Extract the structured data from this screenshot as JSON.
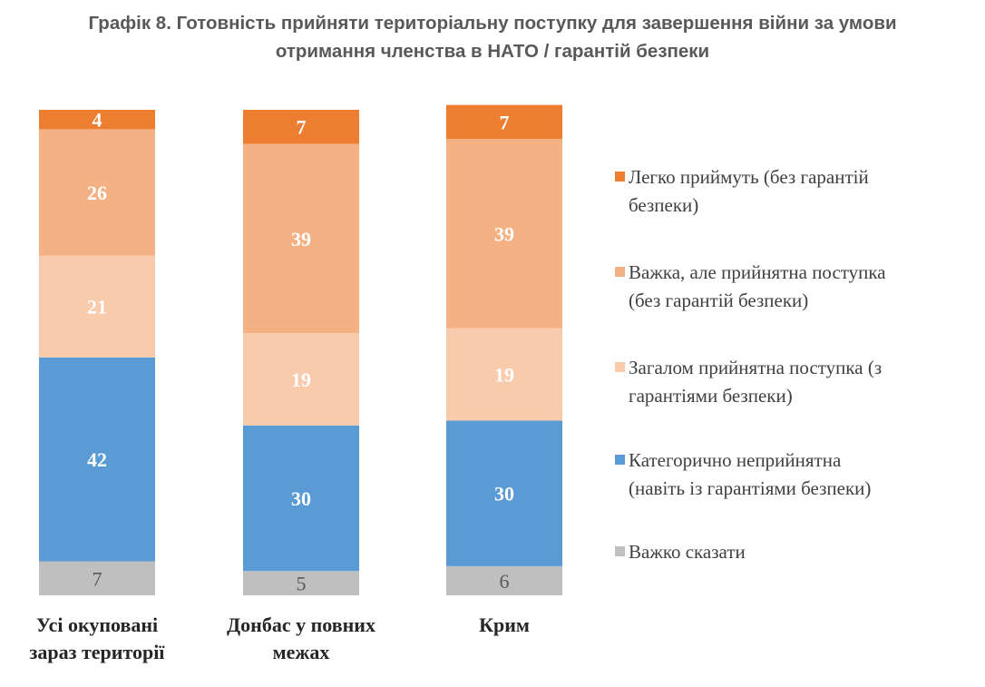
{
  "title_line1": "Графік 8. Готовність прийняти територіальну поступку для завершення війни за умови",
  "title_line2": "отримання членства в НАТО / гарантій безпеки",
  "chart_data": {
    "type": "bar",
    "stacked": true,
    "categories": [
      [
        "Усі окуповані",
        "зараз території"
      ],
      [
        "Донбас у повних",
        "межах"
      ],
      [
        "Крим"
      ]
    ],
    "series": [
      {
        "name": "Важко сказати",
        "color": "#bfbfbf",
        "values": [
          7,
          5,
          6
        ]
      },
      {
        "name": "Категорично неприйнятна (навіть із гарантіями безпеки)",
        "color": "#5b9bd5",
        "values": [
          42,
          30,
          30
        ]
      },
      {
        "name": "Загалом прийнятна поступка (з гарантіями безпеки)",
        "color": "#f8cbad",
        "values": [
          21,
          19,
          19
        ]
      },
      {
        "name": "Важка, але прийнятна поступка (без гарантій безпеки)",
        "color": "#f4b183",
        "values": [
          26,
          39,
          39
        ]
      },
      {
        "name": "Легко приймуть (без гарантій безпеки)",
        "color": "#ed7d31",
        "values": [
          4,
          7,
          7
        ]
      }
    ],
    "legend_position": "right",
    "data_labels": true,
    "grid": false
  },
  "legend": [
    {
      "lines": [
        "Легко приймуть (без гарантій",
        "безпеки)"
      ],
      "color": "#ed7d31"
    },
    {
      "lines": [
        "Важка, але прийнятна поступка",
        "(без гарантій безпеки)"
      ],
      "color": "#f4b183"
    },
    {
      "lines": [
        "Загалом прийнятна поступка (з",
        "гарантіями безпеки)"
      ],
      "color": "#f8cbad"
    },
    {
      "lines": [
        "Категорично неприйнятна",
        "(навіть із гарантіями безпеки)"
      ],
      "color": "#5b9bd5"
    },
    {
      "lines": [
        "Важко сказати"
      ],
      "color": "#bfbfbf"
    }
  ]
}
